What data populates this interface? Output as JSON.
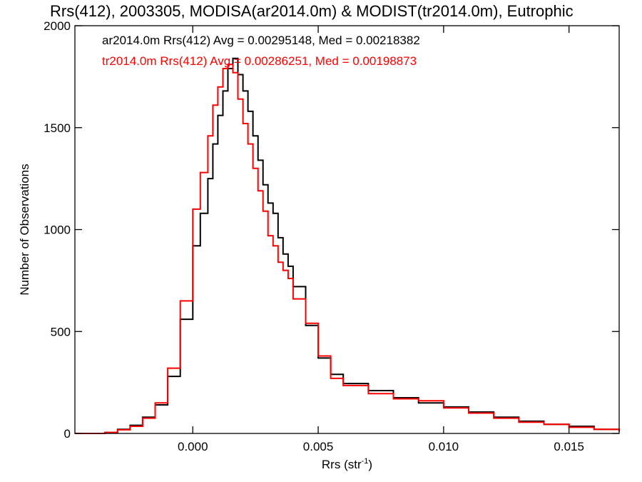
{
  "chart_data": {
    "type": "line",
    "title": "Rrs(412), 2003305, MODISA(ar2014.0m) & MODIST(tr2014.0m), Eutrophic",
    "xlabel": "Rrs (str",
    "xlabel_sup": "-1",
    "xlabel_end": ")",
    "ylabel": "Number of Observations",
    "xlim": [
      -0.0047,
      0.017
    ],
    "ylim": [
      0,
      2000
    ],
    "xticks": [
      {
        "value": 0.0,
        "label": "0.000"
      },
      {
        "value": 0.005,
        "label": "0.005"
      },
      {
        "value": 0.01,
        "label": "0.010"
      },
      {
        "value": 0.015,
        "label": "0.015"
      }
    ],
    "yticks": [
      {
        "value": 0,
        "label": "0"
      },
      {
        "value": 500,
        "label": "500"
      },
      {
        "value": 1000,
        "label": "1000"
      },
      {
        "value": 1500,
        "label": "1500"
      },
      {
        "value": 2000,
        "label": "2000"
      }
    ],
    "grid": false,
    "legend_position": "top-left",
    "series": [
      {
        "name": "ar2014.0m",
        "legend": "ar2014.0m Rrs(412) Avg = 0.00295148, Med = 0.00218382",
        "color": "#000000",
        "x": [
          -0.0047,
          -0.0035,
          -0.003,
          -0.0025,
          -0.002,
          -0.0015,
          -0.001,
          -0.0005,
          0.0,
          0.0003,
          0.0006,
          0.0008,
          0.001,
          0.0012,
          0.0014,
          0.0016,
          0.0018,
          0.002,
          0.0022,
          0.0024,
          0.0026,
          0.0028,
          0.003,
          0.0032,
          0.0034,
          0.0036,
          0.0038,
          0.004,
          0.0045,
          0.005,
          0.0055,
          0.006,
          0.007,
          0.008,
          0.009,
          0.01,
          0.011,
          0.012,
          0.013,
          0.014,
          0.015,
          0.016,
          0.017
        ],
        "y": [
          0,
          5,
          20,
          40,
          80,
          140,
          280,
          560,
          920,
          1080,
          1250,
          1420,
          1560,
          1680,
          1790,
          1840,
          1760,
          1680,
          1580,
          1460,
          1340,
          1220,
          1130,
          1080,
          960,
          880,
          820,
          720,
          530,
          370,
          290,
          245,
          210,
          175,
          150,
          130,
          105,
          80,
          60,
          45,
          35,
          20,
          10
        ]
      },
      {
        "name": "tr2014.0m",
        "legend": "tr2014.0m Rrs(412) Avg = 0.00286251, Med = 0.00198873",
        "color": "#ff0000",
        "x": [
          -0.0047,
          -0.0035,
          -0.003,
          -0.0025,
          -0.002,
          -0.0015,
          -0.001,
          -0.0005,
          0.0,
          0.0003,
          0.0006,
          0.0008,
          0.001,
          0.0012,
          0.0014,
          0.0016,
          0.0018,
          0.002,
          0.0022,
          0.0024,
          0.0026,
          0.0028,
          0.003,
          0.0032,
          0.0034,
          0.0036,
          0.0038,
          0.004,
          0.0045,
          0.005,
          0.0055,
          0.006,
          0.007,
          0.008,
          0.009,
          0.01,
          0.011,
          0.012,
          0.013,
          0.014,
          0.015,
          0.016,
          0.017
        ],
        "y": [
          0,
          5,
          18,
          35,
          75,
          150,
          320,
          650,
          1100,
          1280,
          1460,
          1610,
          1700,
          1790,
          1810,
          1770,
          1640,
          1520,
          1420,
          1300,
          1190,
          1090,
          970,
          920,
          840,
          800,
          760,
          660,
          540,
          380,
          270,
          235,
          195,
          170,
          160,
          125,
          100,
          75,
          55,
          45,
          30,
          20,
          10
        ]
      }
    ]
  }
}
